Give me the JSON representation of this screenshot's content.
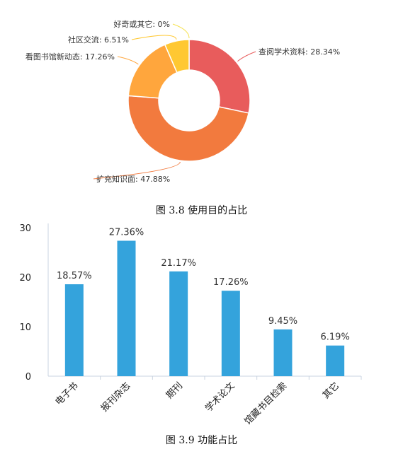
{
  "chart_data": [
    {
      "type": "pie",
      "variant": "donut",
      "caption": "图 3.8   使用目的占比",
      "slices": [
        {
          "label": "查阅学术资料",
          "value": 28.34,
          "display": "查阅学术资料: 28.34%",
          "color": "#e85c5c"
        },
        {
          "label": "扩充知识面",
          "value": 47.88,
          "display": "扩充知识面: 47.88%",
          "color": "#f27a3e"
        },
        {
          "label": "看图书馆新动态",
          "value": 17.26,
          "display": "看图书馆新动态: 17.26%",
          "color": "#ffa63d"
        },
        {
          "label": "社区交流",
          "value": 6.51,
          "display": "社区交流: 6.51%",
          "color": "#ffc832"
        },
        {
          "label": "好奇或其它",
          "value": 0,
          "display": "好奇或其它: 0%",
          "color": "#f5e04a"
        }
      ]
    },
    {
      "type": "bar",
      "caption": "图 3.9   功能占比",
      "categories": [
        "电子书",
        "报刊杂志",
        "期刊",
        "学术论文",
        "馆藏书目检索",
        "其它"
      ],
      "values": [
        18.57,
        27.36,
        21.17,
        17.26,
        9.45,
        6.19
      ],
      "value_labels": [
        "18.57%",
        "27.36%",
        "21.17%",
        "17.26%",
        "9.45%",
        "6.19%"
      ],
      "ylim": [
        0,
        30
      ],
      "yticks": [
        "0",
        "10",
        "20",
        "30"
      ],
      "bar_color": "#34a3dc",
      "xlabel": "",
      "ylabel": "",
      "grid": false
    }
  ]
}
